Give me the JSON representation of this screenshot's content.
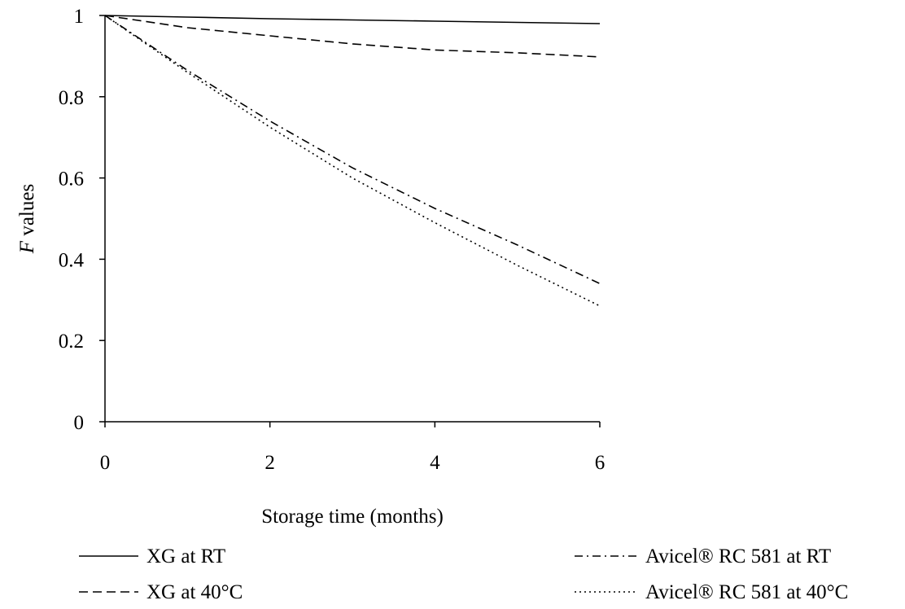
{
  "chart_data": {
    "type": "line",
    "title": "",
    "xlabel": "Storage time (months)",
    "ylabel_italic": "F",
    "ylabel_rest": " values",
    "xlim": [
      0,
      6
    ],
    "ylim": [
      0,
      1
    ],
    "x_ticks": [
      0,
      2,
      4,
      6
    ],
    "x_tick_labels": [
      "0",
      "2",
      "4",
      "6"
    ],
    "y_ticks": [
      0,
      0.2,
      0.4,
      0.6,
      0.8,
      1
    ],
    "y_tick_labels": [
      "0",
      "0.2",
      "0.4",
      "0.6",
      "0.8",
      "1"
    ],
    "grid": false,
    "legend_placement": "bottom",
    "series": [
      {
        "name": "XG at RT",
        "style": "solid",
        "color": "#000000",
        "points": [
          [
            0,
            1.0
          ],
          [
            1,
            0.996
          ],
          [
            2,
            0.992
          ],
          [
            3,
            0.989
          ],
          [
            4,
            0.986
          ],
          [
            5,
            0.983
          ],
          [
            6,
            0.98
          ]
        ]
      },
      {
        "name": "XG at 40°C",
        "style": "dashed",
        "color": "#000000",
        "points": [
          [
            0,
            1.0
          ],
          [
            1,
            0.97
          ],
          [
            2,
            0.95
          ],
          [
            3,
            0.93
          ],
          [
            4,
            0.915
          ],
          [
            5,
            0.908
          ],
          [
            6,
            0.898
          ]
        ]
      },
      {
        "name": "Avicel® RC 581 at RT",
        "style": "dashdot",
        "color": "#000000",
        "points": [
          [
            0,
            1.0
          ],
          [
            1,
            0.865
          ],
          [
            2,
            0.74
          ],
          [
            3,
            0.625
          ],
          [
            4,
            0.525
          ],
          [
            5,
            0.435
          ],
          [
            6,
            0.34
          ]
        ]
      },
      {
        "name": "Avicel® RC 581 at 40°C",
        "style": "dotted",
        "color": "#000000",
        "points": [
          [
            0,
            1.0
          ],
          [
            1,
            0.86
          ],
          [
            2,
            0.725
          ],
          [
            3,
            0.6
          ],
          [
            4,
            0.49
          ],
          [
            5,
            0.385
          ],
          [
            6,
            0.285
          ]
        ]
      }
    ]
  }
}
